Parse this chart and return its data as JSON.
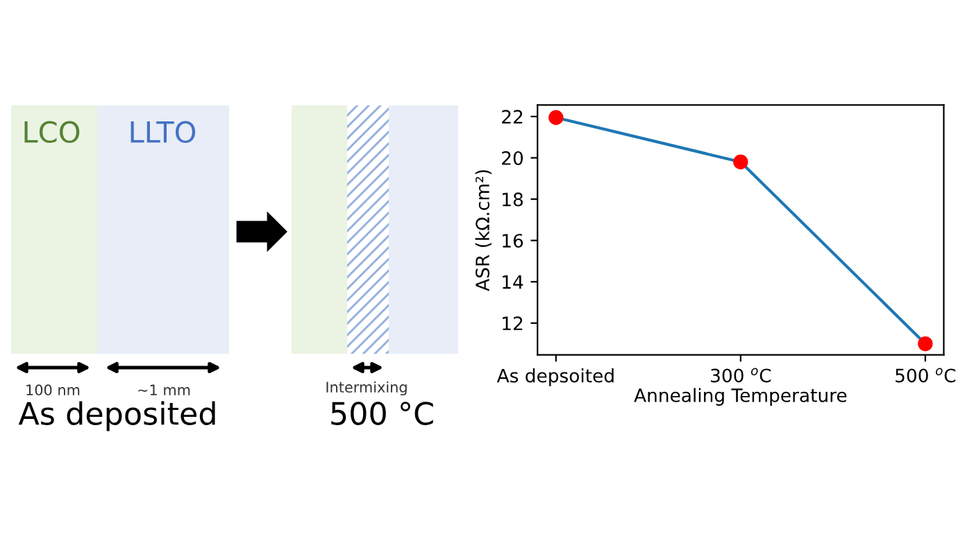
{
  "chart_data": [
    {
      "type": "other",
      "annotations": [
        "LCO",
        "LLTO",
        "100 nm",
        "~1 mm",
        "As deposited",
        "Intermixing",
        "500 °C"
      ]
    },
    {
      "type": "line",
      "xlabel": "Annealing Temperature",
      "ylabel": "ASR (kΩ.cm²)",
      "categories": [
        "As depsoited",
        "300 $^{o}$C",
        "500 $^{o}$C"
      ],
      "series": [
        {
          "color": "#1f77b4",
          "colors": [
            "#ff0000",
            "#ff0000",
            "#ff0000"
          ],
          "values": [
            21.95,
            19.8,
            11.0
          ]
        }
      ],
      "marker": "circle",
      "ylim": [
        10.46,
        22.56
      ],
      "yticks": [
        12,
        14,
        16,
        18,
        20,
        22
      ],
      "grid": false,
      "legend": false
    }
  ]
}
